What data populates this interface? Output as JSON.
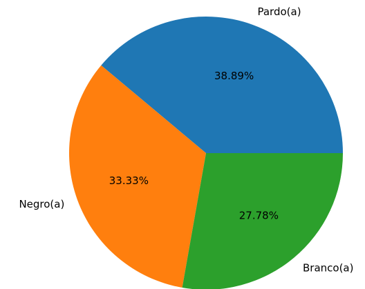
{
  "chart_data": {
    "type": "pie",
    "categories": [
      "Pardo(a)",
      "Negro(a)",
      "Branco(a)"
    ],
    "values": [
      38.89,
      33.33,
      27.78
    ],
    "value_labels": [
      "38.89%",
      "33.33%",
      "27.78%"
    ],
    "colors": [
      "#1f77b4",
      "#ff7f0e",
      "#2ca02c"
    ]
  }
}
